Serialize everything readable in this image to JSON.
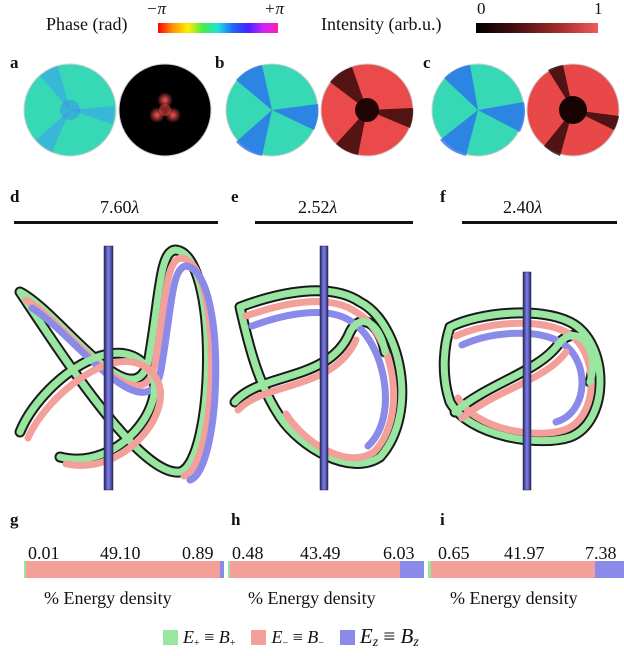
{
  "colorbars": {
    "phase_label": "Phase (rad)",
    "phase_min": "−π",
    "phase_max": "+π",
    "intensity_label": "Intensity (arb.u.)",
    "intensity_min": "0",
    "intensity_max": "1"
  },
  "panels": {
    "top": [
      "a",
      "b",
      "c"
    ],
    "middle": [
      "d",
      "e",
      "f"
    ],
    "bottom": [
      "g",
      "h",
      "i"
    ]
  },
  "scalebars": [
    {
      "value": "7.60",
      "unit": "λ"
    },
    {
      "value": "2.52",
      "unit": "λ"
    },
    {
      "value": "2.40",
      "unit": "λ"
    }
  ],
  "energy_bars": [
    {
      "e_plus": 0.01,
      "e_minus": 49.1,
      "e_z": 0.89,
      "labels": [
        "0.01",
        "49.10",
        "0.89"
      ],
      "caption": "% Energy density"
    },
    {
      "e_plus": 0.48,
      "e_minus": 43.49,
      "e_z": 6.03,
      "labels": [
        "0.48",
        "43.49",
        "6.03"
      ],
      "caption": "% Energy density"
    },
    {
      "e_plus": 0.65,
      "e_minus": 41.97,
      "e_z": 7.38,
      "labels": [
        "0.65",
        "41.97",
        "7.38"
      ],
      "caption": "% Energy density"
    }
  ],
  "colors": {
    "e_plus": "#98e6a0",
    "e_minus": "#f4a09a",
    "e_z": "#8a8ae8",
    "intensity_high": "#f05050"
  },
  "legend": {
    "e_plus_symbol": "E",
    "e_plus_sub": "+",
    "e_plus_b": "B",
    "e_minus_symbol": "E",
    "e_minus_sub": "−",
    "e_minus_b": "B",
    "e_z_symbol": "E",
    "e_z_sub": "z",
    "e_z_b": "B",
    "equiv": "≡"
  }
}
